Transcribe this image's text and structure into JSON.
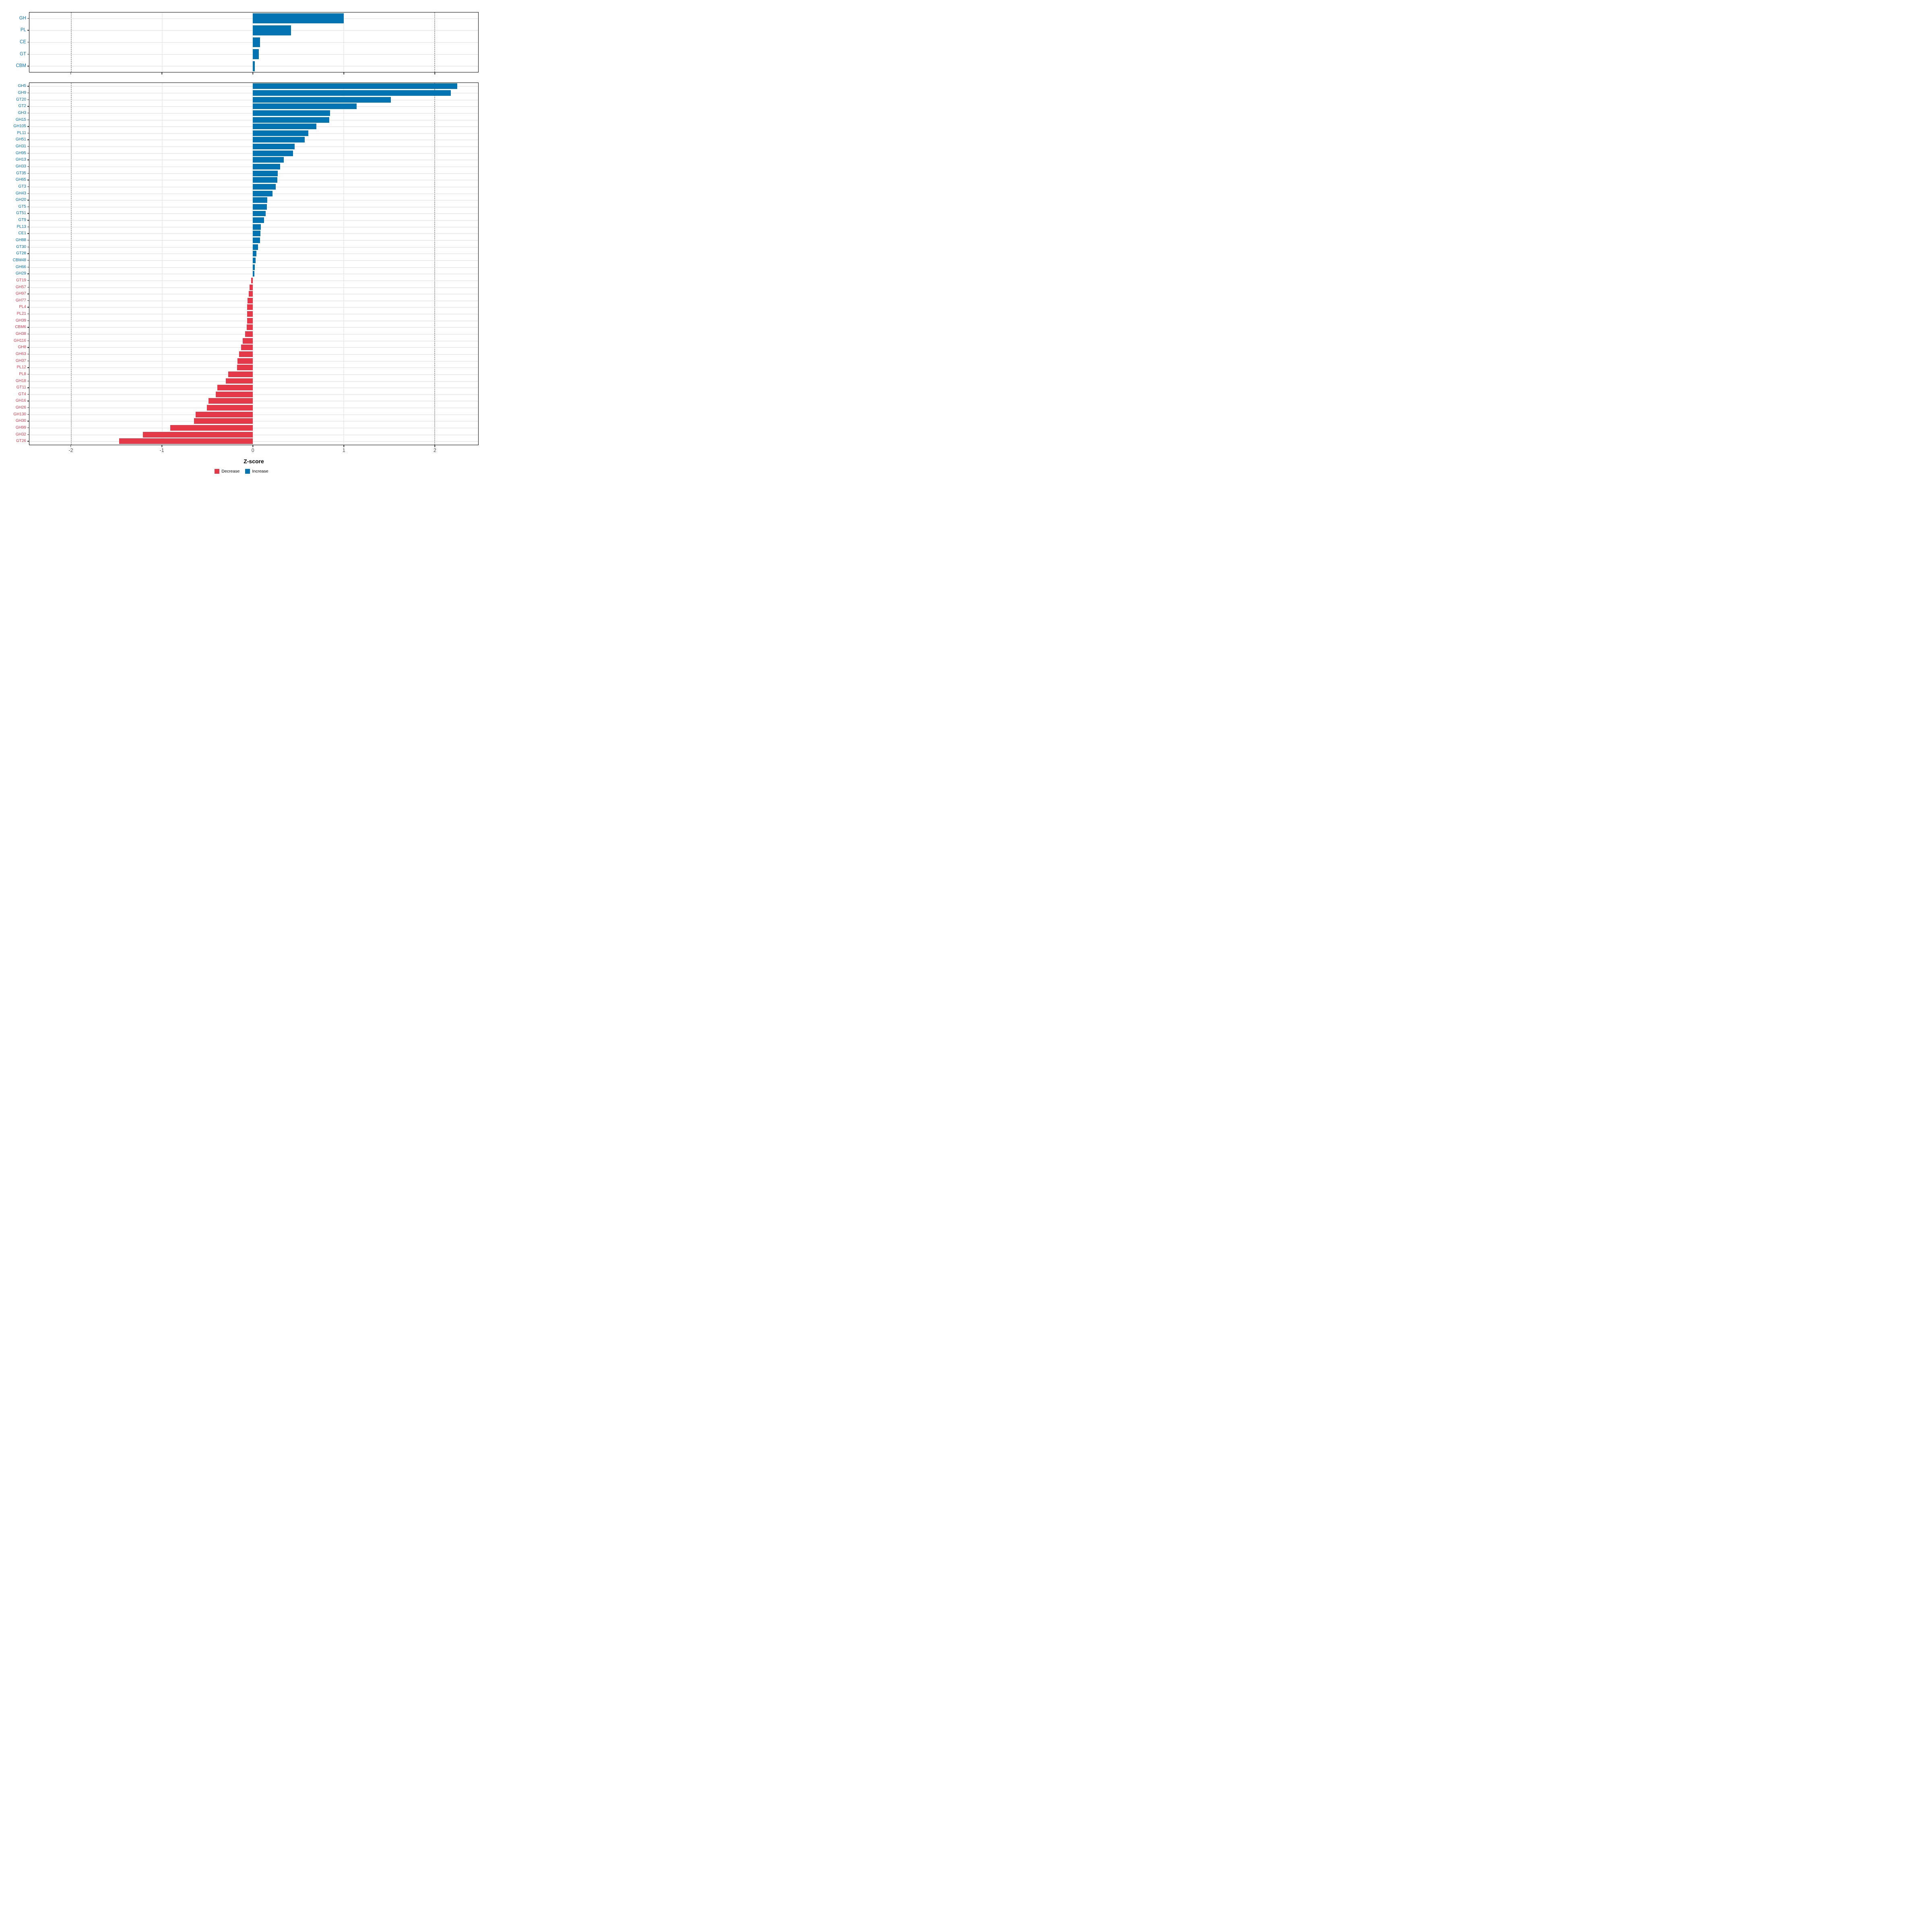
{
  "page": {
    "background": "#ffffff"
  },
  "colors": {
    "increase": "#0274b2",
    "decrease": "#e5394a",
    "grid": "#dcdcdc",
    "reference_line": "#4a4a4a",
    "panel_border": "#000000",
    "axis_text": "#4d4d4d",
    "axis_title": "#000000"
  },
  "x_axis": {
    "title": "Z-score",
    "tick_labels": [
      "-2",
      "-1",
      "0",
      "1",
      "2"
    ],
    "tick_values": [
      -2,
      -1,
      0,
      1,
      2
    ]
  },
  "legend": {
    "items": [
      {
        "label": "Decrease",
        "color_key": "decrease"
      },
      {
        "label": "Increase",
        "color_key": "increase"
      }
    ]
  },
  "chart_data": [
    {
      "id": "enzyme-class-panel",
      "type": "bar",
      "orientation": "horizontal",
      "title": "",
      "xlabel": "Z-score",
      "ylabel": "",
      "xlim": [
        -2.46,
        2.48
      ],
      "grid_x": [
        -2,
        -1,
        0,
        1,
        2
      ],
      "reference_lines_x": [
        -2,
        2
      ],
      "legend_position": "bottom",
      "categories": [
        "GH",
        "PL",
        "CE",
        "GT",
        "CBM"
      ],
      "values": [
        1.0,
        0.42,
        0.08,
        0.065,
        0.02
      ]
    },
    {
      "id": "cazyme-family-panel",
      "type": "bar",
      "orientation": "horizontal",
      "title": "",
      "xlabel": "Z-score",
      "ylabel": "",
      "xlim": [
        -2.46,
        2.48
      ],
      "grid_x": [
        -2,
        -1,
        0,
        1,
        2
      ],
      "reference_lines_x": [
        -2,
        2
      ],
      "legend_position": "bottom",
      "categories": [
        "GH5",
        "GH9",
        "GT20",
        "GT2",
        "GH3",
        "GH15",
        "GH105",
        "PL11",
        "GH51",
        "GH31",
        "GH95",
        "GH13",
        "GH33",
        "GT35",
        "GH65",
        "GT3",
        "GH43",
        "GH20",
        "GT5",
        "GT51",
        "GT9",
        "PL13",
        "CE1",
        "GH88",
        "GT30",
        "GT28",
        "CBM48",
        "GH66",
        "GH29",
        "GT19",
        "GH57",
        "GH97",
        "GH77",
        "PL4",
        "PL21",
        "GH39",
        "CBM6",
        "GH38",
        "GH116",
        "GH8",
        "GH63",
        "GH37",
        "PL12",
        "PL8",
        "GH18",
        "GT11",
        "GT4",
        "GH16",
        "GH26",
        "GH130",
        "GH30",
        "GH99",
        "GH32",
        "GT26"
      ],
      "values": [
        2.25,
        2.18,
        1.52,
        1.14,
        0.85,
        0.84,
        0.7,
        0.61,
        0.57,
        0.46,
        0.44,
        0.34,
        0.3,
        0.275,
        0.27,
        0.25,
        0.215,
        0.16,
        0.152,
        0.14,
        0.125,
        0.087,
        0.083,
        0.078,
        0.056,
        0.041,
        0.031,
        0.02,
        0.016,
        -0.02,
        -0.036,
        -0.046,
        -0.06,
        -0.062,
        -0.065,
        -0.065,
        -0.067,
        -0.085,
        -0.11,
        -0.13,
        -0.15,
        -0.17,
        -0.175,
        -0.27,
        -0.3,
        -0.39,
        -0.41,
        -0.49,
        -0.505,
        -0.63,
        -0.65,
        -0.91,
        -1.21,
        -1.47
      ]
    }
  ]
}
